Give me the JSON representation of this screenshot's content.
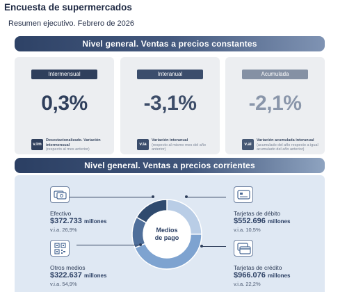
{
  "header": {
    "title": "Encuesta de supermercados",
    "subtitle": "Resumen ejecutivo. Febrero de 2026"
  },
  "constant_prices": {
    "banner": "Nivel general. Ventas a precios constantes",
    "cards": [
      {
        "label": "Intermensual",
        "value": "0,3%",
        "badge": "v.im",
        "note_title": "Desestacionalizado. Variación intermensual",
        "note_sub": "(respecto al mes anterior)"
      },
      {
        "label": "Interanual",
        "value": "-3,1%",
        "badge": "v.ia",
        "note_title": "Variación interanual",
        "note_sub": "(respecto al mismo mes del año anterior)"
      },
      {
        "label": "Acumulada",
        "value": "-2,1%",
        "badge": "v.ai",
        "note_title": "Variación acumulada interanual",
        "note_sub": "(acumulado del año respecto a igual acumulado del año anterior)"
      }
    ]
  },
  "current_prices": {
    "banner": "Nivel general. Ventas a precios corrientes",
    "center_label_1": "Medios",
    "center_label_2": "de pago",
    "unit": "millones",
    "methods": [
      {
        "name": "Efectivo",
        "value": "$372.733",
        "via": "v.i.a. 26,9%",
        "icon": "cash-icon",
        "share": 16.4
      },
      {
        "name": "Otros medios",
        "value": "$322.637",
        "via": "v.i.a. 54,9%",
        "icon": "qr-code-icon",
        "share": 14.2
      },
      {
        "name": "Tarjetas de débito",
        "value": "$552.696",
        "via": "v.i.a. 10,5%",
        "icon": "debit-card-icon",
        "share": 24.3
      },
      {
        "name": "Tarjetas de crédito",
        "value": "$966.076",
        "via": "v.i.a. 22,2%",
        "icon": "credit-card-icon",
        "share": 42.5
      }
    ],
    "colors": {
      "efectivo": "#2f4a6e",
      "otros": "#4f6f9a",
      "debito": "#b9cde6",
      "credito": "#7ea3d0"
    }
  }
}
